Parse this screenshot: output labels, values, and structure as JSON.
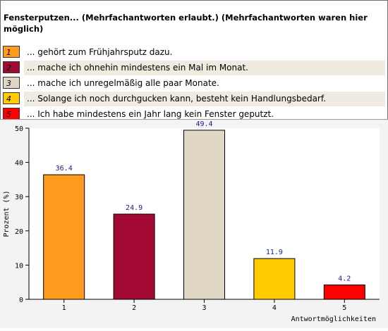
{
  "question": {
    "title": "Fensterputzen... (Mehrfachantworten erlaubt.) (Mehrfachantworten waren hier möglich)"
  },
  "legend": [
    {
      "number": "1",
      "label": "... gehört zum Frühjahrsputz dazu.",
      "color": "#ff9a1f",
      "text_color": "#000000"
    },
    {
      "number": "2",
      "label": "... mache ich ohnehin mindestens ein Mal im Monat.",
      "color": "#a30a33",
      "text_color": "#000000"
    },
    {
      "number": "3",
      "label": "... mache ich unregelmäßig alle paar Monate.",
      "color": "#e1d7c5",
      "text_color": "#000000"
    },
    {
      "number": "4",
      "label": "... Solange ich noch durchgucken kann, besteht kein Handlungsbedarf.",
      "color": "#ffcc00",
      "text_color": "#000000"
    },
    {
      "number": "5",
      "label": "... Ich habe mindestens ein Jahr lang kein Fenster geputzt.",
      "color": "#ff0000",
      "text_color": "#000000"
    }
  ],
  "chart_data": {
    "type": "bar",
    "categories": [
      "1",
      "2",
      "3",
      "4",
      "5"
    ],
    "values": [
      36.4,
      24.9,
      49.4,
      11.9,
      4.2
    ],
    "value_labels": [
      "36.4",
      "24.9",
      "49.4",
      "11.9",
      "4.2"
    ],
    "colors": [
      "#ff9a1f",
      "#a30a33",
      "#e1d7c5",
      "#ffcc00",
      "#ff0000"
    ],
    "xlabel": "Antwortmöglichkeiten",
    "ylabel": "Prozent (%)",
    "ylim": [
      0,
      50
    ],
    "yticks": [
      "0",
      "10",
      "20",
      "30",
      "40",
      "50"
    ],
    "grid": false
  }
}
